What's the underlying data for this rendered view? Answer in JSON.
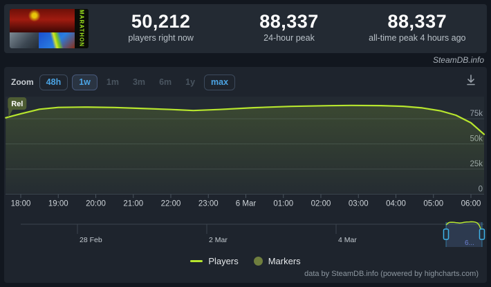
{
  "header": {
    "game_title": "MARATHON",
    "stats": [
      {
        "value": "50,212",
        "label": "players right now"
      },
      {
        "value": "88,337",
        "label": "24-hour peak"
      },
      {
        "value": "88,337",
        "label": "all-time peak 4 hours ago"
      }
    ]
  },
  "watermark": "SteamDB.info",
  "toolbar": {
    "zoom_label": "Zoom",
    "buttons": [
      {
        "label": "48h",
        "enabled": true,
        "selected": false
      },
      {
        "label": "1w",
        "enabled": true,
        "selected": true
      },
      {
        "label": "1m",
        "enabled": false,
        "selected": false
      },
      {
        "label": "3m",
        "enabled": false,
        "selected": false
      },
      {
        "label": "6m",
        "enabled": false,
        "selected": false
      },
      {
        "label": "1y",
        "enabled": false,
        "selected": false
      },
      {
        "label": "max",
        "enabled": true,
        "selected": false
      }
    ]
  },
  "chart_data": {
    "type": "line",
    "title": "",
    "xlabel": "",
    "ylabel": "",
    "units": "players (thousands)",
    "x_axis_note": "hours since 18:00 on 5 Mar",
    "ylim": [
      0,
      97
    ],
    "grid": true,
    "legend_position": "bottom-center",
    "series": [
      {
        "name": "Players",
        "color": "#b7e62e",
        "points": [
          [
            -0.4,
            76.0
          ],
          [
            0,
            80.0
          ],
          [
            0.5,
            84.5
          ],
          [
            1,
            86.3
          ],
          [
            1.7,
            86.6
          ],
          [
            2.5,
            86.2
          ],
          [
            3.2,
            85.3
          ],
          [
            4,
            84.2
          ],
          [
            4.6,
            83.2
          ],
          [
            5.3,
            84.2
          ],
          [
            6.2,
            86.0
          ],
          [
            7.2,
            87.3
          ],
          [
            8.2,
            88.0
          ],
          [
            8.8,
            88.3
          ],
          [
            9.6,
            88.1
          ],
          [
            10.2,
            87.4
          ],
          [
            10.7,
            85.8
          ],
          [
            11.2,
            82.8
          ],
          [
            11.6,
            78.5
          ],
          [
            12.0,
            71.0
          ],
          [
            12.39,
            59.5
          ]
        ]
      }
    ],
    "flags": [
      {
        "label": "Rel",
        "t": -0.4
      }
    ],
    "x_ticks": [
      {
        "t": 0,
        "label": "18:00"
      },
      {
        "t": 1,
        "label": "19:00"
      },
      {
        "t": 2,
        "label": "20:00"
      },
      {
        "t": 3,
        "label": "21:00"
      },
      {
        "t": 4,
        "label": "22:00"
      },
      {
        "t": 5,
        "label": "23:00"
      },
      {
        "t": 6,
        "label": "6 Mar"
      },
      {
        "t": 7,
        "label": "01:00"
      },
      {
        "t": 8,
        "label": "02:00"
      },
      {
        "t": 9,
        "label": "03:00"
      },
      {
        "t": 10,
        "label": "04:00"
      },
      {
        "t": 11,
        "label": "05:00"
      },
      {
        "t": 12,
        "label": "06:00"
      }
    ],
    "y_ticks": [
      {
        "v": 75,
        "label": "75k"
      },
      {
        "v": 50,
        "label": "50k"
      },
      {
        "v": 25,
        "label": "25k"
      },
      {
        "v": 0,
        "label": "0"
      }
    ],
    "legend": [
      {
        "type": "line",
        "label": "Players",
        "color": "#b7e62e"
      },
      {
        "type": "circle",
        "label": "Markers",
        "color": "#6f7e3e"
      }
    ],
    "navigator": {
      "date_ticks": [
        {
          "x": 106,
          "label": "28 Feb"
        },
        {
          "x": 293,
          "label": "2 Mar"
        },
        {
          "x": 480,
          "label": "4 Mar"
        }
      ],
      "selection_label": "6...",
      "extra_points": [
        [
          12.6,
          54.0
        ],
        [
          12.85,
          50.2
        ]
      ]
    }
  },
  "credits": "data by SteamDB.info (powered by highcharts.com)",
  "colors": {
    "page_bg": "#12171f",
    "header_card_bg": "#232a33",
    "chart_card_bg": "#1e242d",
    "plot_bg": "#232a32",
    "gridline": "#3a434c",
    "line": "#b7e62e",
    "accent_blue": "#4ba3e3",
    "disabled_text": "#49545f",
    "flag_bg": "#4d5c33",
    "handle_stroke": "#3fb2e8",
    "selection_mask": "rgba(100,135,200,0.22)",
    "selection_label_color": "#6b7fd0",
    "marker_dot": "#6f7e3e"
  }
}
